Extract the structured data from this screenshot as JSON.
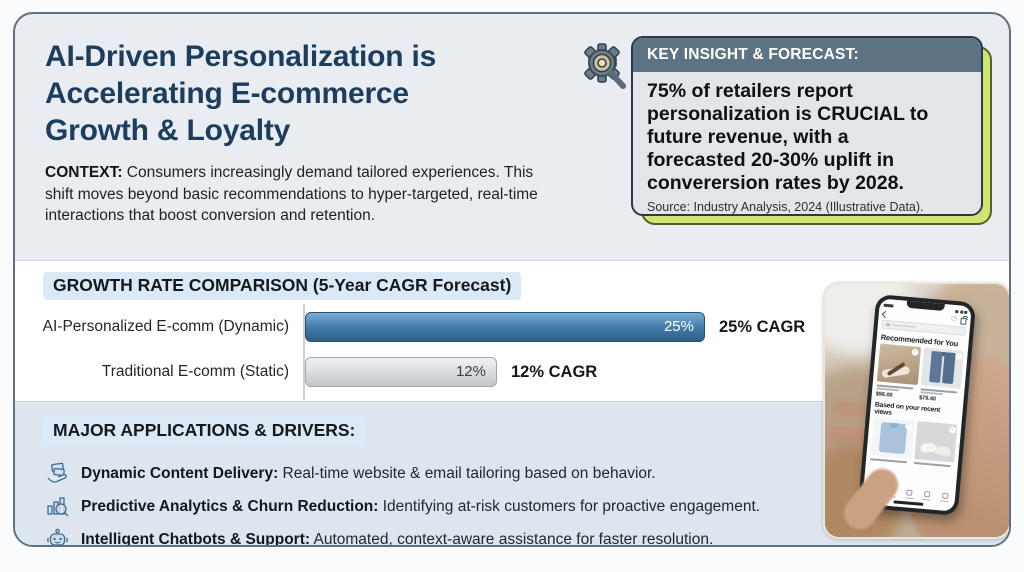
{
  "colors": {
    "page-bg": "#fafbfc",
    "card-border": "#5f7080",
    "band-top": "#e9edf2",
    "band-mid": "#ffffff",
    "band-bottom": "#dde5ee",
    "navy": "#1c3d5e",
    "slate": "#5d7383",
    "lime": "#cfe573",
    "pill": "#dbe9f7",
    "ink": "#15191d",
    "bar-blue": "#3f74a0",
    "bar-gray": "#c9ced4"
  },
  "header": {
    "title": "AI-Driven Personalization is\nAccelerating E-commerce\nGrowth & Loyalty",
    "context_label": "CONTEXT:",
    "context_text": " Consumers increasingly demand tailored experiences. This shift moves beyond basic recommendations to hyper-targeted, real-time interactions that boost conversion and retention."
  },
  "insight": {
    "icon": "gear-magnifier-icon",
    "heading": "KEY INSIGHT & FORECAST:",
    "body": "75% of retailers report\npersonalization is CRUCIAL to\nfuture revenue, with a\nforecasted 20-30% uplift in\nconverersion rates by 2028.",
    "source": "Source: Industry Analysis, 2024 (Illustrative Data)."
  },
  "chart_data": {
    "type": "bar",
    "orientation": "horizontal",
    "title": "GROWTH RATE COMPARISON (5-Year CAGR Forecast)",
    "categories": [
      "AI-Personalized E-comm (Dynamic)",
      "Traditional E-comm (Static)"
    ],
    "values": [
      25,
      12
    ],
    "xlim": [
      0,
      25
    ],
    "grid": false,
    "legend": false,
    "bar_labels": [
      "25%",
      "12%"
    ],
    "value_labels": [
      "25% CAGR",
      "12% CAGR"
    ],
    "bar_colors": [
      "#3f74a0",
      "#c9ced4"
    ],
    "xlabel": "",
    "ylabel": ""
  },
  "applications": {
    "heading": "MAJOR APPLICATIONS & DRIVERS:",
    "items": [
      {
        "icon": "hand-content-delivery-icon",
        "title": "Dynamic Content Delivery:",
        "desc": " Real-time website & email tailoring based on behavior."
      },
      {
        "icon": "analytics-magnifier-icon",
        "title": "Predictive Analytics & Churn Reduction:",
        "desc": " Identifying at-risk customers for proactive engagement."
      },
      {
        "icon": "chatbot-icon",
        "title": "Intelligent Chatbots & Support:",
        "desc": " Automated, context-aware assistance for faster resolution."
      }
    ]
  },
  "phone": {
    "section1_heading": "Recommended for You",
    "section2_heading": "Based on your recent views",
    "price1": "$96.00",
    "price2": "$79.40"
  }
}
